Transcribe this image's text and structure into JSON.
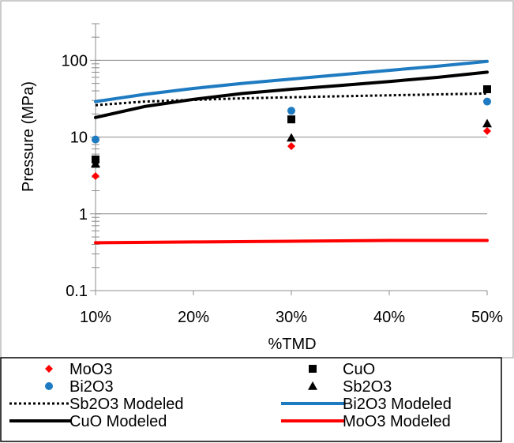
{
  "chart_data": {
    "type": "scatter",
    "title": "",
    "xlabel": "%TMD",
    "ylabel": "Pressure (MPa)",
    "xscale": "linear",
    "yscale": "log",
    "xlim": [
      0.1,
      0.5
    ],
    "ylim": [
      0.1,
      300
    ],
    "x_ticks": [
      {
        "value": 0.1,
        "label": "10%"
      },
      {
        "value": 0.2,
        "label": "20%"
      },
      {
        "value": 0.3,
        "label": "30%"
      },
      {
        "value": 0.4,
        "label": "40%"
      },
      {
        "value": 0.5,
        "label": "50%"
      }
    ],
    "y_ticks": [
      {
        "value": 0.1,
        "label": "0.1"
      },
      {
        "value": 1,
        "label": "1"
      },
      {
        "value": 10,
        "label": "10"
      },
      {
        "value": 100,
        "label": "100"
      }
    ],
    "grid": "horizontal",
    "legend_position": "bottom",
    "series": [
      {
        "name": "MoO3",
        "kind": "marker",
        "marker": "diamond",
        "color": "#ff0000",
        "x": [
          0.1,
          0.3,
          0.5
        ],
        "y": [
          3.1,
          7.6,
          12
        ]
      },
      {
        "name": "CuO",
        "kind": "marker",
        "marker": "square",
        "color": "#000000",
        "x": [
          0.1,
          0.3,
          0.5
        ],
        "y": [
          5.1,
          17,
          42
        ]
      },
      {
        "name": "Bi2O3",
        "kind": "marker",
        "marker": "circle",
        "color": "#1f7bc1",
        "x": [
          0.1,
          0.3,
          0.5
        ],
        "y": [
          9.3,
          22,
          29
        ]
      },
      {
        "name": "Sb2O3",
        "kind": "marker",
        "marker": "triangle",
        "color": "#000000",
        "x": [
          0.1,
          0.3,
          0.5
        ],
        "y": [
          4.5,
          9.8,
          15
        ]
      },
      {
        "name": "Sb2O3 Modeled",
        "kind": "line",
        "dash": "dotted",
        "color": "#000000",
        "x": [
          0.1,
          0.15,
          0.2,
          0.25,
          0.3,
          0.35,
          0.4,
          0.45,
          0.5
        ],
        "y": [
          26,
          29,
          30.5,
          32,
          33,
          34,
          35,
          36,
          37
        ]
      },
      {
        "name": "Bi2O3 Modeled",
        "kind": "line",
        "dash": "solid",
        "color": "#1f7bc1",
        "x": [
          0.1,
          0.15,
          0.2,
          0.25,
          0.3,
          0.35,
          0.4,
          0.45,
          0.5
        ],
        "y": [
          29,
          36,
          43,
          50,
          57,
          65,
          74,
          84,
          97
        ]
      },
      {
        "name": "CuO Modeled",
        "kind": "line",
        "dash": "solid",
        "color": "#000000",
        "x": [
          0.1,
          0.15,
          0.2,
          0.25,
          0.3,
          0.35,
          0.4,
          0.45,
          0.5
        ],
        "y": [
          18,
          25,
          31,
          37,
          42,
          47,
          53,
          60,
          70
        ]
      },
      {
        "name": "MoO3 Modeled",
        "kind": "line",
        "dash": "solid",
        "color": "#ff0000",
        "x": [
          0.1,
          0.2,
          0.3,
          0.4,
          0.5
        ],
        "y": [
          0.42,
          0.43,
          0.44,
          0.45,
          0.45
        ]
      }
    ],
    "legend_order": [
      "MoO3",
      "CuO",
      "Bi2O3",
      "Sb2O3",
      "Sb2O3 Modeled",
      "Bi2O3 Modeled",
      "CuO Modeled",
      "MoO3 Modeled"
    ]
  }
}
